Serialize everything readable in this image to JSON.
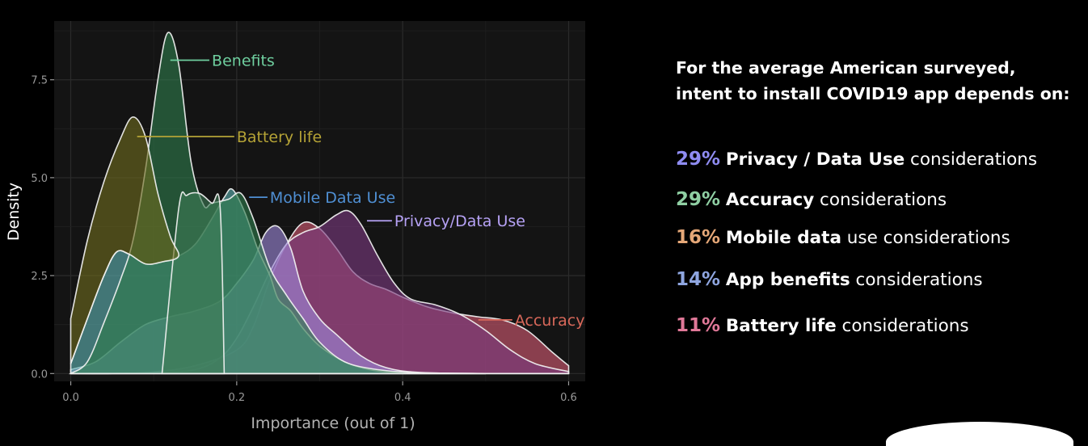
{
  "chart_data": {
    "type": "area",
    "title": "",
    "xlabel": "Importance (out of 1)",
    "ylabel": "Density",
    "xlim": [
      -0.02,
      0.62
    ],
    "ylim": [
      -0.2,
      9.0
    ],
    "xticks": [
      "0.0",
      "0.2",
      "0.4",
      "0.6"
    ],
    "xtick_values": [
      0.0,
      0.2,
      0.4,
      0.6
    ],
    "yticks": [
      "0.0",
      "2.5",
      "5.0",
      "7.5"
    ],
    "ytick_values": [
      0.0,
      2.5,
      5.0,
      7.5
    ],
    "background": "#141414",
    "grid": true,
    "series": [
      {
        "name": "Accuracy",
        "label": "Accuracy",
        "fill": "#d45a73",
        "label_color": "#d9685a",
        "label_at": [
          0.535,
          1.37
        ],
        "label_text_at": [
          0.535,
          1.37
        ],
        "points": [
          [
            0.0,
            0.0
          ],
          [
            0.05,
            0.0
          ],
          [
            0.1,
            0.04
          ],
          [
            0.15,
            0.2
          ],
          [
            0.2,
            0.6
          ],
          [
            0.22,
            1.2
          ],
          [
            0.24,
            2.4
          ],
          [
            0.26,
            3.3
          ],
          [
            0.28,
            3.85
          ],
          [
            0.3,
            3.7
          ],
          [
            0.32,
            3.2
          ],
          [
            0.34,
            2.6
          ],
          [
            0.36,
            2.3
          ],
          [
            0.38,
            2.15
          ],
          [
            0.4,
            1.95
          ],
          [
            0.43,
            1.7
          ],
          [
            0.46,
            1.55
          ],
          [
            0.49,
            1.45
          ],
          [
            0.52,
            1.37
          ],
          [
            0.55,
            1.1
          ],
          [
            0.58,
            0.55
          ],
          [
            0.6,
            0.2
          ]
        ]
      },
      {
        "name": "Privacy/Data Use",
        "label": "Privacy/Data Use",
        "fill": "#7a3a80",
        "label_color": "#b6a2f5",
        "label_at": [
          0.357,
          3.9
        ],
        "label_text_at": [
          0.39,
          3.9
        ],
        "points": [
          [
            0.0,
            0.0
          ],
          [
            0.1,
            0.02
          ],
          [
            0.15,
            0.1
          ],
          [
            0.18,
            0.4
          ],
          [
            0.2,
            0.9
          ],
          [
            0.22,
            1.7
          ],
          [
            0.24,
            2.6
          ],
          [
            0.26,
            3.3
          ],
          [
            0.28,
            3.6
          ],
          [
            0.3,
            3.75
          ],
          [
            0.32,
            4.05
          ],
          [
            0.335,
            4.15
          ],
          [
            0.35,
            3.8
          ],
          [
            0.37,
            3.0
          ],
          [
            0.39,
            2.3
          ],
          [
            0.41,
            1.9
          ],
          [
            0.44,
            1.75
          ],
          [
            0.47,
            1.5
          ],
          [
            0.5,
            1.1
          ],
          [
            0.53,
            0.6
          ],
          [
            0.56,
            0.25
          ],
          [
            0.6,
            0.05
          ]
        ]
      },
      {
        "name": "Mobile Data Use",
        "label": "Mobile Data Use",
        "fill": "#9d88d8",
        "label_color": "#4f8fd3",
        "label_at": [
          0.215,
          4.5
        ],
        "label_text_at": [
          0.24,
          4.5
        ],
        "points": [
          [
            0.0,
            0.1
          ],
          [
            0.03,
            0.3
          ],
          [
            0.06,
            0.8
          ],
          [
            0.09,
            1.25
          ],
          [
            0.12,
            1.45
          ],
          [
            0.15,
            1.6
          ],
          [
            0.18,
            1.85
          ],
          [
            0.2,
            2.3
          ],
          [
            0.22,
            2.9
          ],
          [
            0.235,
            3.6
          ],
          [
            0.25,
            3.75
          ],
          [
            0.265,
            3.2
          ],
          [
            0.28,
            2.1
          ],
          [
            0.3,
            1.4
          ],
          [
            0.32,
            1.0
          ],
          [
            0.35,
            0.45
          ],
          [
            0.38,
            0.15
          ],
          [
            0.42,
            0.03
          ],
          [
            0.5,
            0.0
          ],
          [
            0.6,
            0.0
          ]
        ]
      },
      {
        "name": "Battery life",
        "label": "Battery life",
        "fill": "#5fb3b3",
        "label_color": "#b5a336",
        "label_at": [
          0.08,
          6.05
        ],
        "label_text_at": [
          0.2,
          6.05
        ],
        "points": [
          [
            0.0,
            0.25
          ],
          [
            0.02,
            1.4
          ],
          [
            0.04,
            2.5
          ],
          [
            0.055,
            3.1
          ],
          [
            0.07,
            3.05
          ],
          [
            0.09,
            2.8
          ],
          [
            0.11,
            2.85
          ],
          [
            0.13,
            3.0
          ],
          [
            0.15,
            3.3
          ],
          [
            0.17,
            3.95
          ],
          [
            0.185,
            4.5
          ],
          [
            0.195,
            4.7
          ],
          [
            0.21,
            4.1
          ],
          [
            0.225,
            3.2
          ],
          [
            0.24,
            2.5
          ],
          [
            0.25,
            1.9
          ],
          [
            0.265,
            1.6
          ],
          [
            0.28,
            1.15
          ],
          [
            0.3,
            0.7
          ],
          [
            0.33,
            0.3
          ],
          [
            0.36,
            0.1
          ],
          [
            0.4,
            0.02
          ],
          [
            0.5,
            0.0
          ]
        ]
      },
      {
        "name": "Benefits",
        "label": "Benefits",
        "fill": "#2f7a4c",
        "label_color": "#6fcf9f",
        "label_at": [
          0.12,
          8.0
        ],
        "label_text_at": [
          0.17,
          8.0
        ],
        "points": [
          [
            0.0,
            0.0
          ],
          [
            0.02,
            0.3
          ],
          [
            0.04,
            1.3
          ],
          [
            0.06,
            2.4
          ],
          [
            0.075,
            3.4
          ],
          [
            0.09,
            5.2
          ],
          [
            0.105,
            7.5
          ],
          [
            0.117,
            8.7
          ],
          [
            0.13,
            7.9
          ],
          [
            0.145,
            5.4
          ],
          [
            0.16,
            4.3
          ],
          [
            0.17,
            4.35
          ],
          [
            0.19,
            4.45
          ],
          [
            0.205,
            4.6
          ],
          [
            0.22,
            3.95
          ],
          [
            0.24,
            2.7
          ],
          [
            0.26,
            2.0
          ],
          [
            0.28,
            1.4
          ],
          [
            0.3,
            0.8
          ],
          [
            0.33,
            0.3
          ],
          [
            0.37,
            0.1
          ],
          [
            0.42,
            0.02
          ],
          [
            0.5,
            0.0
          ]
        ]
      },
      {
        "name": "Benefits (secondary peak)",
        "label": "",
        "fill": "#3d7a55",
        "label_color": "#6fcf9f",
        "points": [
          [
            0.11,
            0.0
          ],
          [
            0.13,
            4.2
          ],
          [
            0.14,
            4.55
          ],
          [
            0.155,
            4.6
          ],
          [
            0.17,
            4.35
          ],
          [
            0.18,
            4.25
          ],
          [
            0.185,
            0.0
          ]
        ]
      },
      {
        "name": "Battery life (low-x peak)",
        "label": "",
        "fill": "#6e6a1e",
        "label_color": "#b5a336",
        "points": [
          [
            0.0,
            1.4
          ],
          [
            0.02,
            3.4
          ],
          [
            0.04,
            4.9
          ],
          [
            0.06,
            6.0
          ],
          [
            0.075,
            6.55
          ],
          [
            0.09,
            6.05
          ],
          [
            0.105,
            4.6
          ],
          [
            0.12,
            3.5
          ],
          [
            0.13,
            3.0
          ],
          [
            0.11,
            2.85
          ],
          [
            0.09,
            2.8
          ],
          [
            0.07,
            3.05
          ],
          [
            0.055,
            3.1
          ],
          [
            0.04,
            2.5
          ],
          [
            0.02,
            1.4
          ],
          [
            0.0,
            0.25
          ]
        ]
      }
    ]
  },
  "summary": {
    "headline_line1": "For the average American surveyed,",
    "headline_line2": "intent to install COVID19 app depends on:",
    "items": [
      {
        "percent": "29%",
        "percent_color": "#8f8cf2",
        "factor": "Privacy / Data Use",
        "suffix": " considerations"
      },
      {
        "percent": "29%",
        "percent_color": "#8fcfa3",
        "factor": "Accuracy",
        "suffix": " considerations"
      },
      {
        "percent": "16%",
        "percent_color": "#e6a878",
        "factor": "Mobile data",
        "suffix": " use considerations"
      },
      {
        "percent": "14%",
        "percent_color": "#8fa6e0",
        "factor": "App benefits",
        "suffix": " considerations"
      },
      {
        "percent": "11%",
        "percent_color": "#e07898",
        "factor": "Battery life",
        "suffix": " considerations"
      }
    ]
  }
}
